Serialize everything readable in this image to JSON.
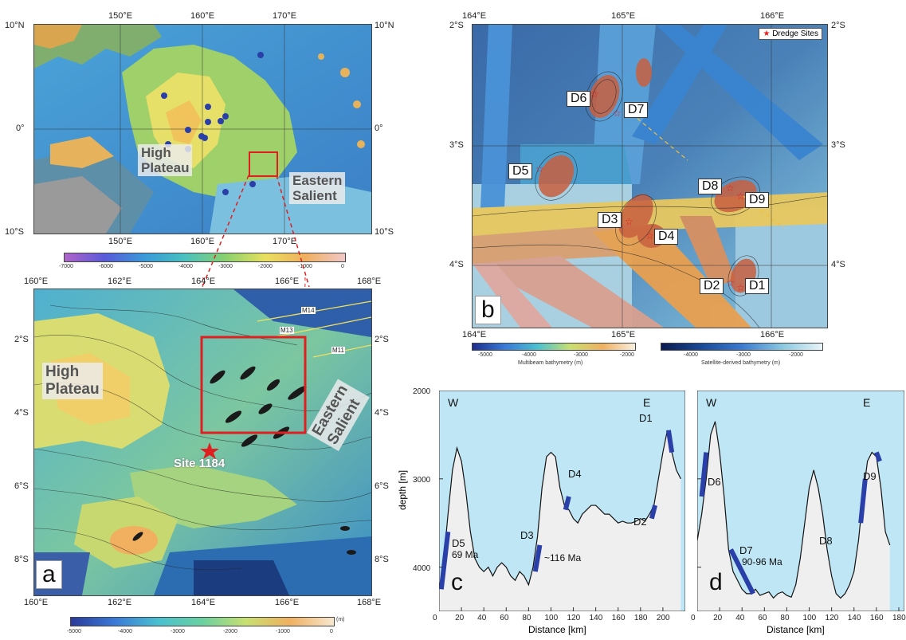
{
  "top_map": {
    "lon_ticks": [
      "150°E",
      "160°E",
      "170°E"
    ],
    "lat_ticks_left": [
      "10°N",
      "0°",
      "10°S"
    ],
    "lat_ticks_right": [
      "10°N",
      "0°",
      "10°S"
    ],
    "labels": {
      "high_plateau": "High\nPlateau",
      "eastern_salient": "Eastern\nSalient"
    },
    "colorbar_ticks": [
      "-7000",
      "-6000",
      "-5000",
      "-4000",
      "-3000",
      "-2000",
      "-1000",
      "0"
    ]
  },
  "map_a": {
    "lon_ticks_top": [
      "160°E",
      "162°E",
      "164°E",
      "166°E",
      "168°E"
    ],
    "lon_ticks_bottom": [
      "160°E",
      "162°E",
      "164°E",
      "166°E",
      "168°E"
    ],
    "lat_ticks_left": [
      "2°S",
      "4°S",
      "6°S",
      "8°S"
    ],
    "lat_ticks_right": [
      "2°S",
      "4°S",
      "6°S",
      "8°S"
    ],
    "labels": {
      "high_plateau": "High\nPlateau",
      "eastern_salient": "Eastern\nSalient",
      "site": "Site 1184"
    },
    "magnetic_lineations": [
      "M14",
      "M13",
      "M11"
    ],
    "panel_letter": "a",
    "colorbar_ticks": [
      "-5000",
      "-4000",
      "-3000",
      "-2000",
      "-1000",
      "0"
    ],
    "colorbar_unit": "(m)"
  },
  "map_b": {
    "lon_ticks_top": [
      "164°E",
      "165°E",
      "166°E"
    ],
    "lon_ticks_bottom": [
      "164°E",
      "165°E",
      "166°E"
    ],
    "lat_ticks_left": [
      "2°S",
      "3°S",
      "4°S"
    ],
    "lat_ticks_right": [
      "2°S",
      "3°S",
      "4°S"
    ],
    "legend": "Dredge Sites",
    "dredge_sites": [
      "D1",
      "D2",
      "D3",
      "D4",
      "D5",
      "D6",
      "D7",
      "D8",
      "D9"
    ],
    "panel_letter": "b",
    "colorbar1_ticks": [
      "-5000",
      "-4000",
      "-3000",
      "-2000"
    ],
    "colorbar1_title": "Multibeam bathymetry (m)",
    "colorbar2_ticks": [
      "-4000",
      "-3000",
      "-2000"
    ],
    "colorbar2_title": "Satellite-derived bathymetry (m)"
  },
  "profiles": {
    "ylabel": "depth [m]",
    "xlabel": "Distance [km]",
    "y_ticks": [
      "2000",
      "3000",
      "4000"
    ],
    "c": {
      "letter": "c",
      "west": "W",
      "east": "E",
      "x_ticks": [
        "0",
        "20",
        "40",
        "60",
        "80",
        "100",
        "120",
        "140",
        "160",
        "180",
        "200"
      ],
      "samples": [
        "D5",
        "D3",
        "D4",
        "D2",
        "D1"
      ],
      "ages": [
        "69 Ma",
        "~116 Ma"
      ]
    },
    "d": {
      "letter": "d",
      "west": "W",
      "east": "E",
      "x_ticks": [
        "0",
        "20",
        "40",
        "60",
        "80",
        "100",
        "120",
        "140",
        "160",
        "180"
      ],
      "samples": [
        "D6",
        "D7",
        "D8",
        "D9"
      ],
      "ages": [
        "90-96 Ma"
      ]
    }
  },
  "chart_data": [
    {
      "type": "line",
      "title": "",
      "xlabel": "Distance [km]",
      "ylabel": "depth [m]",
      "xlim": [
        0,
        220
      ],
      "ylim": [
        4500,
        2000
      ],
      "series": [
        {
          "x": [
            0,
            4,
            8,
            12,
            16,
            20,
            24,
            28,
            32,
            36,
            40,
            44,
            48,
            52,
            56,
            60,
            64,
            68,
            72,
            76,
            80,
            84,
            88,
            92,
            96,
            100,
            104,
            108,
            112,
            116,
            120,
            124,
            128,
            132,
            136,
            140,
            144,
            148,
            152,
            156,
            160,
            164,
            168,
            172,
            176,
            180,
            184,
            188,
            192,
            196,
            200,
            204,
            208,
            212,
            216
          ],
          "values": [
            4250,
            3950,
            3400,
            2900,
            2650,
            2800,
            3150,
            3600,
            3900,
            4000,
            4050,
            4000,
            4100,
            4000,
            3950,
            4000,
            4100,
            4150,
            4050,
            4100,
            4200,
            4000,
            3650,
            3100,
            2750,
            2700,
            2750,
            3100,
            3300,
            3350,
            3450,
            3500,
            3400,
            3350,
            3300,
            3300,
            3350,
            3400,
            3400,
            3450,
            3500,
            3480,
            3500,
            3500,
            3480,
            3450,
            3480,
            3400,
            3300,
            3000,
            2700,
            2450,
            2700,
            2900,
            3000
          ]
        }
      ]
    },
    {
      "type": "line",
      "title": "",
      "xlabel": "Distance [km]",
      "ylabel": "depth [m]",
      "xlim": [
        0,
        185
      ],
      "ylim": [
        4500,
        2000
      ],
      "series": [
        {
          "x": [
            0,
            4,
            8,
            12,
            16,
            20,
            24,
            28,
            32,
            36,
            40,
            44,
            48,
            52,
            56,
            60,
            64,
            68,
            72,
            76,
            80,
            84,
            88,
            92,
            96,
            100,
            104,
            108,
            112,
            116,
            120,
            124,
            128,
            132,
            136,
            140,
            144,
            148,
            152,
            156,
            160,
            164,
            168,
            172
          ],
          "values": [
            3700,
            3400,
            3000,
            2500,
            2350,
            2700,
            3200,
            3800,
            4050,
            4150,
            4250,
            4300,
            4300,
            4250,
            4320,
            4300,
            4280,
            4350,
            4300,
            4280,
            4320,
            4340,
            4200,
            3900,
            3500,
            3100,
            2900,
            3100,
            3400,
            3800,
            4100,
            4300,
            4350,
            4300,
            4200,
            4050,
            3700,
            3200,
            2800,
            2700,
            2750,
            3100,
            3600,
            3750
          ]
        }
      ]
    }
  ]
}
